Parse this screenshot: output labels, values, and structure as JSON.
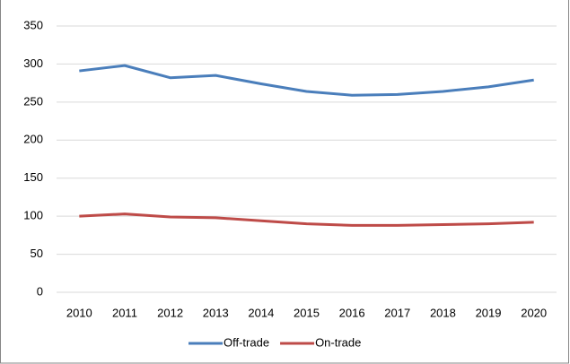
{
  "chart_data": {
    "type": "line",
    "categories": [
      "2010",
      "2011",
      "2012",
      "2013",
      "2014",
      "2015",
      "2016",
      "2017",
      "2018",
      "2019",
      "2020"
    ],
    "series": [
      {
        "name": "Off-trade",
        "color": "#4a7ebb",
        "values": [
          291,
          298,
          282,
          285,
          274,
          264,
          259,
          260,
          264,
          270,
          279
        ]
      },
      {
        "name": "On-trade",
        "color": "#be4b48",
        "values": [
          100,
          103,
          99,
          98,
          94,
          90,
          88,
          88,
          89,
          90,
          92
        ]
      }
    ],
    "ylim": [
      0,
      350
    ],
    "yticks": [
      0,
      50,
      100,
      150,
      200,
      250,
      300,
      350
    ],
    "grid": true,
    "legend": "bottom"
  }
}
